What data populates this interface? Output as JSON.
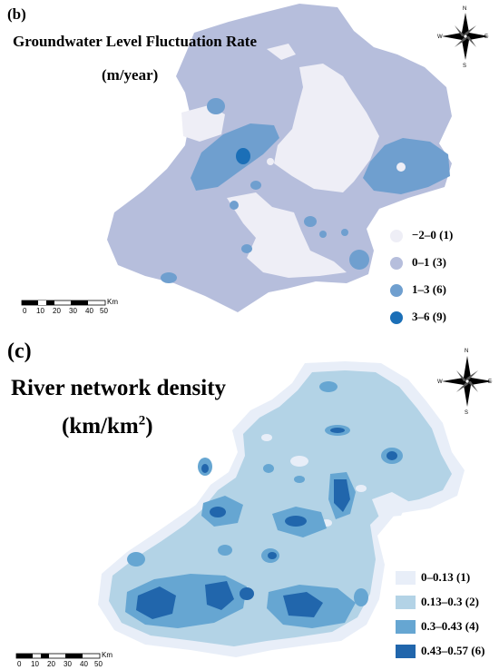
{
  "panel_b": {
    "label": "(b)",
    "title": "Groundwater Level Fluctuation Rate",
    "unit": "(m/year)",
    "legend": [
      {
        "label": "−2–0 (1)",
        "color": "#eeeef6"
      },
      {
        "label": "0–1 (3)",
        "color": "#b6bedc"
      },
      {
        "label": "1–3 (6)",
        "color": "#6f9fcf"
      },
      {
        "label": "3–6 (9)",
        "color": "#1b6fb7"
      }
    ],
    "scale": {
      "ticks": [
        "0",
        "10",
        "20",
        "30",
        "40",
        "50"
      ],
      "unit": "Km"
    },
    "compass": {
      "n": "N",
      "s": "S",
      "e": "E",
      "w": "W"
    }
  },
  "panel_c": {
    "label": "(c)",
    "title": "River network density",
    "unit_base": "(km/km",
    "unit_sup": "2",
    "unit_close": ")",
    "legend": [
      {
        "label": "0–0.13 (1)",
        "color": "#e8eef8"
      },
      {
        "label": "0.13–0.3 (2)",
        "color": "#b3d3e6"
      },
      {
        "label": "0.3–0.43 (4)",
        "color": "#66a6d2"
      },
      {
        "label": "0.43–0.57 (6)",
        "color": "#2166ac"
      }
    ],
    "scale": {
      "ticks": [
        "0",
        "10",
        "20",
        "30",
        "40",
        "50"
      ],
      "unit": "Km"
    },
    "compass": {
      "n": "N",
      "s": "S",
      "e": "E",
      "w": "W"
    }
  }
}
